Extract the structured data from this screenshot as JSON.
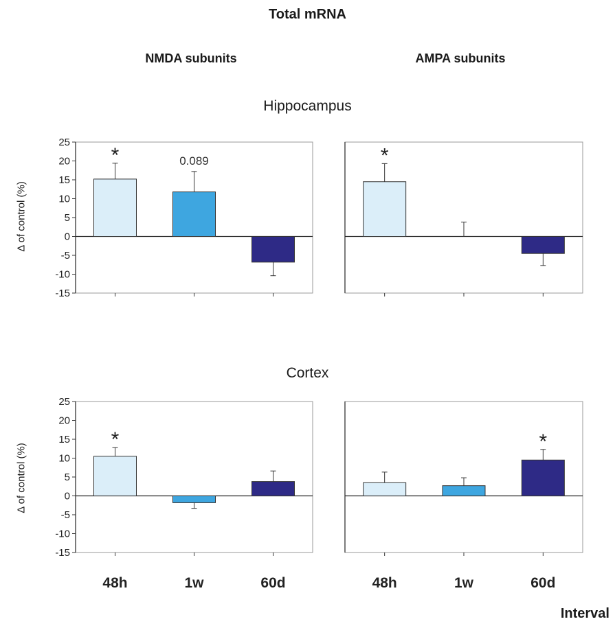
{
  "title": "Total mRNA",
  "column_titles": [
    "NMDA subunits",
    "AMPA subunits"
  ],
  "row_titles": [
    "Hippocampus",
    "Cortex"
  ],
  "ylabel": "Δ of control (%)",
  "xlabel": "Interval",
  "colors": {
    "48h": "#dbeef9",
    "1w": "#3ea6e0",
    "60d": "#2e2a86"
  },
  "chart_data": [
    {
      "type": "bar",
      "region": "Hippocampus",
      "subunits": "NMDA subunits",
      "categories": [
        "48h",
        "1w",
        "60d"
      ],
      "values": [
        15.2,
        11.8,
        -6.8
      ],
      "errors": [
        4.2,
        5.4,
        3.6
      ],
      "annotations": [
        "*",
        "0.089",
        ""
      ],
      "ylim": [
        -15,
        25
      ],
      "yticks": [
        25,
        20,
        15,
        10,
        5,
        0,
        -5,
        -10,
        -15
      ],
      "show_xticklabels": false
    },
    {
      "type": "bar",
      "region": "Hippocampus",
      "subunits": "AMPA subunits",
      "categories": [
        "48h",
        "1w",
        "60d"
      ],
      "values": [
        14.5,
        0,
        -4.5
      ],
      "errors": [
        4.8,
        3.8,
        3.2
      ],
      "annotations": [
        "*",
        "",
        ""
      ],
      "ylim": [
        -15,
        25
      ],
      "yticks": [],
      "show_xticklabels": false
    },
    {
      "type": "bar",
      "region": "Cortex",
      "subunits": "NMDA subunits",
      "categories": [
        "48h",
        "1w",
        "60d"
      ],
      "values": [
        10.5,
        -1.8,
        3.8
      ],
      "errors": [
        2.3,
        1.5,
        2.8
      ],
      "annotations": [
        "*",
        "",
        ""
      ],
      "ylim": [
        -15,
        25
      ],
      "yticks": [
        25,
        20,
        15,
        10,
        5,
        0,
        -5,
        -10,
        -15
      ],
      "show_xticklabels": true
    },
    {
      "type": "bar",
      "region": "Cortex",
      "subunits": "AMPA subunits",
      "categories": [
        "48h",
        "1w",
        "60d"
      ],
      "values": [
        3.5,
        2.7,
        9.5
      ],
      "errors": [
        2.8,
        2.1,
        2.8
      ],
      "annotations": [
        "",
        "",
        "*"
      ],
      "ylim": [
        -15,
        25
      ],
      "yticks": [],
      "show_xticklabels": true
    }
  ]
}
